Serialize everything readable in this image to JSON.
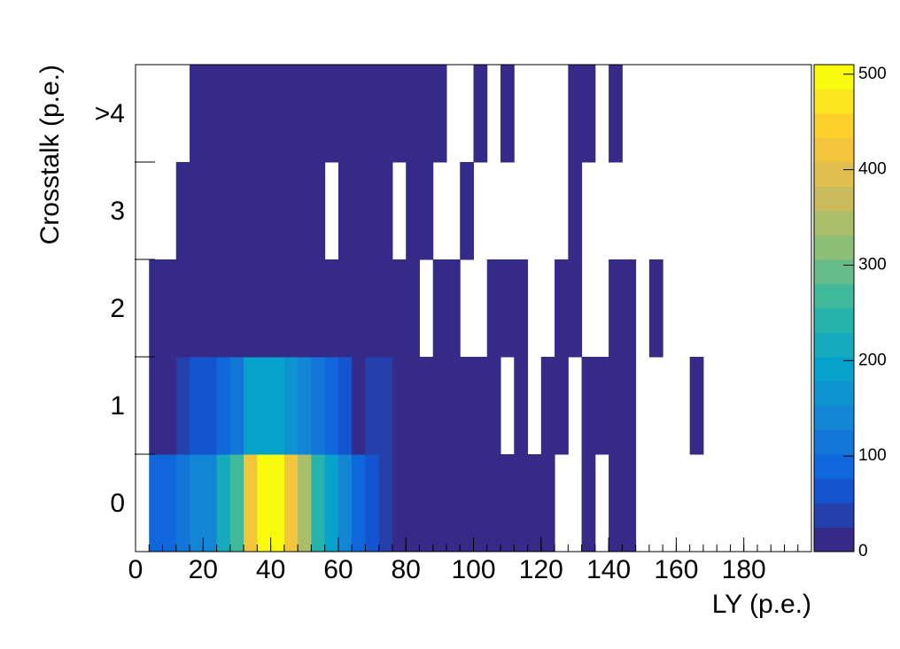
{
  "chart_data": {
    "type": "heatmap",
    "x_label": "LY (p.e.)",
    "y_label": "Crosstalk (p.e.)",
    "x_bins": [
      0,
      4,
      8,
      12,
      16,
      20,
      24,
      28,
      32,
      36,
      40,
      44,
      48,
      52,
      56,
      60,
      64,
      68,
      72,
      76,
      80,
      84,
      88,
      92,
      96,
      100,
      104,
      108,
      112,
      116,
      120,
      124,
      128,
      132,
      136,
      140,
      144,
      148,
      152,
      156,
      160,
      164,
      168,
      172,
      176,
      180,
      184,
      188,
      192,
      196,
      200
    ],
    "xlim": [
      0,
      200
    ],
    "xticks": [
      0,
      20,
      40,
      60,
      80,
      100,
      120,
      140,
      160,
      180
    ],
    "y_categories": [
      "0",
      "1",
      "2",
      "3",
      ">4"
    ],
    "values": [
      [
        0,
        80,
        100,
        120,
        130,
        150,
        220,
        280,
        430,
        510,
        490,
        420,
        340,
        250,
        180,
        130,
        90,
        60,
        50,
        5,
        5,
        5,
        5,
        5,
        5,
        5,
        5,
        5,
        5,
        5,
        5,
        0,
        0,
        2,
        0,
        2,
        2,
        0,
        0,
        0,
        0,
        0,
        0,
        0,
        0,
        0,
        0,
        0,
        0,
        0
      ],
      [
        0,
        10,
        10,
        50,
        55,
        65,
        80,
        110,
        180,
        190,
        190,
        170,
        130,
        110,
        90,
        70,
        10,
        50,
        50,
        5,
        5,
        5,
        5,
        5,
        5,
        5,
        5,
        0,
        5,
        0,
        5,
        5,
        0,
        5,
        5,
        5,
        5,
        0,
        0,
        0,
        0,
        2,
        0,
        0,
        0,
        0,
        0,
        0,
        0,
        0
      ],
      [
        0,
        5,
        5,
        5,
        5,
        5,
        5,
        5,
        5,
        5,
        5,
        5,
        5,
        5,
        5,
        5,
        5,
        5,
        5,
        5,
        5,
        0,
        5,
        5,
        0,
        0,
        5,
        5,
        5,
        0,
        0,
        5,
        5,
        0,
        0,
        5,
        5,
        0,
        5,
        0,
        0,
        0,
        0,
        0,
        0,
        0,
        0,
        0,
        0,
        0
      ],
      [
        0,
        0,
        0,
        3,
        3,
        3,
        3,
        3,
        3,
        3,
        3,
        3,
        3,
        3,
        0,
        3,
        3,
        3,
        3,
        0,
        3,
        3,
        0,
        0,
        3,
        0,
        0,
        0,
        0,
        0,
        0,
        0,
        3,
        0,
        0,
        0,
        0,
        0,
        0,
        0,
        0,
        0,
        0,
        0,
        0,
        0,
        0,
        0,
        0,
        0
      ],
      [
        0,
        0,
        0,
        0,
        3,
        3,
        3,
        3,
        3,
        3,
        3,
        3,
        3,
        3,
        3,
        3,
        3,
        3,
        3,
        3,
        3,
        3,
        3,
        0,
        0,
        3,
        0,
        3,
        0,
        0,
        0,
        0,
        3,
        3,
        0,
        3,
        0,
        0,
        0,
        0,
        0,
        0,
        0,
        0,
        0,
        0,
        0,
        0,
        0,
        0
      ]
    ],
    "zlim": [
      0,
      510
    ],
    "zticks": [
      0,
      100,
      200,
      300,
      400,
      500
    ],
    "levels": 20,
    "palette": [
      "#352a87",
      "#0f5cdd",
      "#1481d6",
      "#06a4ca",
      "#2eb7a4",
      "#87bf77",
      "#d1bb59",
      "#fec832",
      "#f9fb0e"
    ]
  }
}
